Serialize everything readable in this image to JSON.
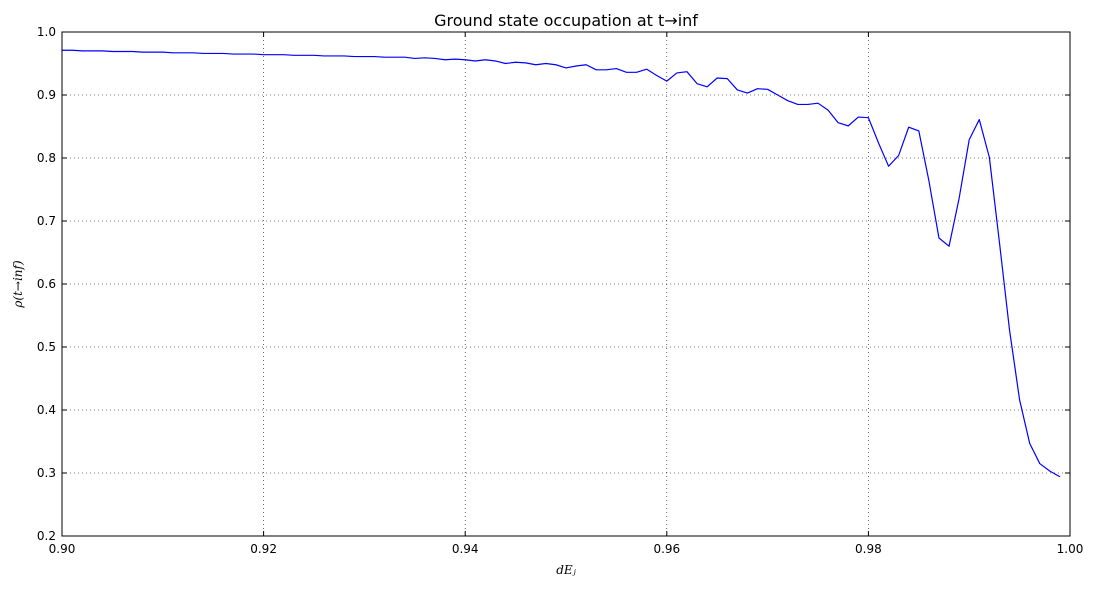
{
  "chart_data": {
    "type": "line",
    "title": "Ground state occupation at t→inf",
    "xlabel": "dEⱼ",
    "ylabel": "ρ(t→inf)",
    "xlim": [
      0.9,
      1.0
    ],
    "ylim": [
      0.2,
      1.0
    ],
    "grid": true,
    "xticks": [
      0.9,
      0.92,
      0.94,
      0.96,
      0.98,
      1.0
    ],
    "xtick_labels": [
      "0.90",
      "0.92",
      "0.94",
      "0.96",
      "0.98",
      "1.00"
    ],
    "yticks": [
      0.2,
      0.3,
      0.4,
      0.5,
      0.6,
      0.7,
      0.8,
      0.9,
      1.0
    ],
    "ytick_labels": [
      "0.2",
      "0.3",
      "0.4",
      "0.5",
      "0.6",
      "0.7",
      "0.8",
      "0.9",
      "1.0"
    ],
    "series": [
      {
        "color": "#0000ff",
        "x": [
          0.9,
          0.901,
          0.902,
          0.903,
          0.904,
          0.905,
          0.906,
          0.907,
          0.908,
          0.909,
          0.91,
          0.911,
          0.912,
          0.913,
          0.914,
          0.915,
          0.916,
          0.917,
          0.918,
          0.919,
          0.92,
          0.921,
          0.922,
          0.923,
          0.924,
          0.925,
          0.926,
          0.927,
          0.928,
          0.929,
          0.93,
          0.931,
          0.932,
          0.933,
          0.934,
          0.935,
          0.936,
          0.937,
          0.938,
          0.939,
          0.94,
          0.941,
          0.942,
          0.943,
          0.944,
          0.945,
          0.946,
          0.947,
          0.948,
          0.949,
          0.95,
          0.951,
          0.952,
          0.953,
          0.954,
          0.955,
          0.956,
          0.957,
          0.958,
          0.959,
          0.96,
          0.961,
          0.962,
          0.963,
          0.964,
          0.965,
          0.966,
          0.967,
          0.968,
          0.969,
          0.97,
          0.971,
          0.972,
          0.973,
          0.974,
          0.975,
          0.976,
          0.977,
          0.978,
          0.979,
          0.98,
          0.981,
          0.982,
          0.983,
          0.984,
          0.985,
          0.986,
          0.987,
          0.988,
          0.989,
          0.99,
          0.991,
          0.992,
          0.993,
          0.994,
          0.995,
          0.996,
          0.997,
          0.998,
          0.999
        ],
        "y": [
          0.971,
          0.971,
          0.97,
          0.97,
          0.97,
          0.969,
          0.969,
          0.969,
          0.968,
          0.968,
          0.968,
          0.967,
          0.967,
          0.967,
          0.966,
          0.966,
          0.966,
          0.965,
          0.965,
          0.965,
          0.964,
          0.964,
          0.964,
          0.963,
          0.963,
          0.963,
          0.962,
          0.962,
          0.962,
          0.961,
          0.961,
          0.961,
          0.96,
          0.96,
          0.96,
          0.958,
          0.959,
          0.958,
          0.956,
          0.957,
          0.956,
          0.954,
          0.956,
          0.954,
          0.95,
          0.952,
          0.951,
          0.948,
          0.95,
          0.948,
          0.943,
          0.946,
          0.948,
          0.94,
          0.94,
          0.942,
          0.936,
          0.936,
          0.941,
          0.931,
          0.922,
          0.935,
          0.937,
          0.918,
          0.913,
          0.927,
          0.926,
          0.908,
          0.903,
          0.91,
          0.909,
          0.9,
          0.891,
          0.885,
          0.885,
          0.887,
          0.876,
          0.856,
          0.851,
          0.865,
          0.864,
          0.824,
          0.787,
          0.804,
          0.849,
          0.843,
          0.764,
          0.673,
          0.66,
          0.736,
          0.829,
          0.861,
          0.801,
          0.666,
          0.527,
          0.416,
          0.347,
          0.315,
          0.303,
          0.294
        ]
      }
    ]
  }
}
